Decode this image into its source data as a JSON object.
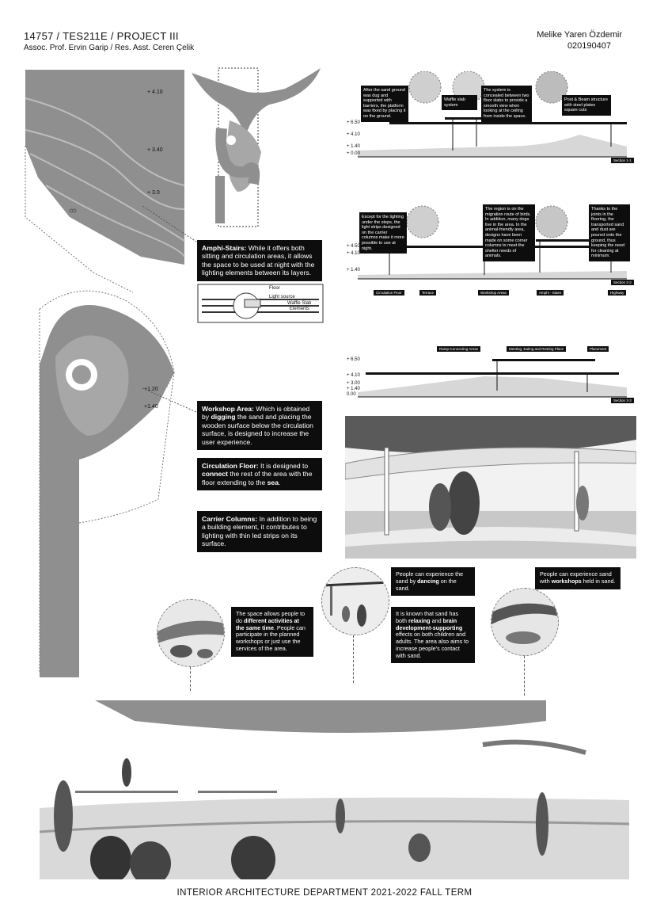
{
  "header": {
    "project_code": "14757 / TES211E / PROJECT III",
    "instructors": "Assoc. Prof. Ervin Garip / Res. Asst. Ceren Çelik",
    "student_name": "Melike Yaren Özdemir",
    "student_id": "020190407"
  },
  "plan_levels": {
    "top_plan": [
      "+ 4.10",
      "+ 3.40",
      "+ 3.0"
    ],
    "lower_plan": [
      "+1.20",
      "+1.40"
    ]
  },
  "notes": {
    "amphi": {
      "title": "Amphi-Stairs:",
      "body": " While it offers both sitting and circulation areas, it allows the space to be used at night with the lighting elements between its layers."
    },
    "workshop": {
      "title": "Workshop Area:",
      "t1": " Which is obtained by ",
      "b1": "digging",
      "t2": " the sand and placing the wooden surface below the circulation surface, is designed to increase the user experience."
    },
    "circulation": {
      "title": "Circulation Floor:",
      "t1": " It is designed to ",
      "b1": "connect",
      "t2": " the rest of the area with the floor extending to the ",
      "b2": "sea",
      "t3": "."
    },
    "columns": {
      "title": "Carrier Columns:",
      "body": " In addition to being a building element, it contributes to lighting with thin led strips on its surface."
    }
  },
  "detail_labels": {
    "floor": "Floor",
    "light": "Light source",
    "waffle": "Waffle Slab",
    "elements": "Elements"
  },
  "section1": {
    "notes": [
      "After the sand ground was dug and supported with barriers, the platform was fixed by placing it on the ground.",
      "Waffle slab system",
      "The system is concealed between two floor slabs to provide a smooth view when looking at the ceiling from inside the space.",
      "Post & Beam structure with steel plates square cuts"
    ],
    "levels": [
      "+ 6.50",
      "+ 4.10",
      "+ 1.40",
      "+ 0.00"
    ],
    "tag": "Section 1-1"
  },
  "section2": {
    "notes": [
      "Except for the lighting under the steps, the light strips designed on the carrier columns make it more possible to use at night.",
      "The region is on the migration route of birds. In addition, many dogs live in the area. In the animal-friendly area, designs have been made on some corner columns to meet the shelter needs of animals.",
      "Thanks to the joints in the flooring, the transported sand and dust are poured onto the ground, thus keeping the need for cleaning at minimum."
    ],
    "levels": [
      "+ 4.50",
      "+ 4.10",
      "+ 1.40"
    ],
    "labels": [
      "Circulation Floor",
      "Terrace",
      "Workshop Areas",
      "Amphi - Stairs",
      "Highway"
    ],
    "tag": "Section 2-2"
  },
  "section3": {
    "labels": [
      "Ramp-Connecting Areas",
      "Meeting, Eating and Resting Place",
      "Placement"
    ],
    "levels": [
      "+ 6.50",
      "+ 4.10",
      "+ 3.00",
      "+ 1.40",
      "0.00"
    ],
    "tag": "Section 3-3"
  },
  "people_notes": {
    "dancing": {
      "t1": "People can experience the sand by ",
      "b1": "dancing",
      "t2": " on the sand."
    },
    "workshops": {
      "t1": "People can experience sand with ",
      "b1": "workshops",
      "t2": " held in sand."
    },
    "activities": {
      "t1": "The space allows people to do ",
      "b1": "different activities at the same time",
      "t2": ". People can participate in the planned workshops or just use the services of the area."
    },
    "relaxing": {
      "t1": "It is known that sand has both ",
      "b1": "relaxing",
      "t2": " and ",
      "b2": "brain development-supporting",
      "t3": " effects on both children and adults. The area also aims to increase people's contact with sand."
    }
  },
  "footer": "INTERIOR ARCHITECTURE DEPARTMENT 2021-2022 FALL TERM"
}
